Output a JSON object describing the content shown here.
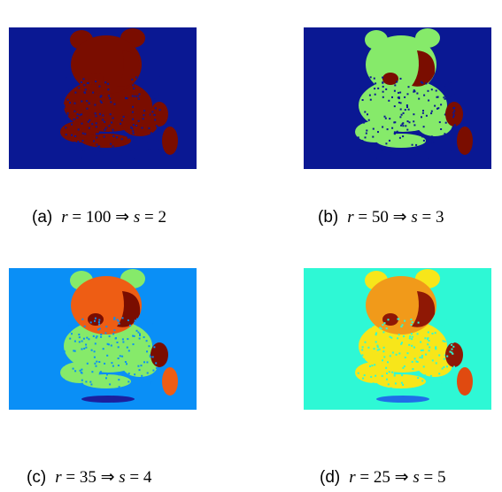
{
  "panels": [
    {
      "label": "(a)",
      "r": "100",
      "s": "2",
      "colors": {
        "background": "#0a1893",
        "body": "#7a0d00",
        "light": "#7a0d00",
        "dark": "#7a0d00",
        "accent": "#7a0d00",
        "shadow": "#0a1893",
        "speckle": "#0a1893"
      }
    },
    {
      "label": "(b)",
      "r": "50",
      "s": "3",
      "colors": {
        "background": "#0a1893",
        "body": "#86ea6a",
        "light": "#86ea6a",
        "dark": "#7a0d00",
        "accent": "#7a0d00",
        "shadow": "#0a1893",
        "speckle": "#0a1893"
      }
    },
    {
      "label": "(c)",
      "r": "35",
      "s": "4",
      "colors": {
        "background": "#0a8ff6",
        "body": "#86ea6a",
        "light": "#ee5d14",
        "dark": "#7a0d00",
        "accent": "#ee5d14",
        "shadow": "#1b1f9e",
        "speckle": "#0a8ff6"
      }
    },
    {
      "label": "(d)",
      "r": "25",
      "s": "5",
      "colors": {
        "background": "#2ef8d5",
        "body": "#f7e61a",
        "light": "#f19a1a",
        "dark": "#8f1805",
        "accent": "#e04a10",
        "shadow": "#1f6ee8",
        "speckle": "#2ef8d5"
      }
    }
  ],
  "math": {
    "r_symbol": "r",
    "s_symbol": "s",
    "equals": "=",
    "implies": "⇒"
  }
}
